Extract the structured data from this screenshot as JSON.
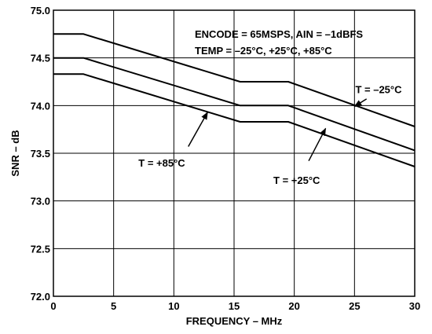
{
  "chart_data": {
    "type": "line",
    "title": "",
    "xlabel": "FREQUENCY – MHz",
    "ylabel": "SNR – dB",
    "xlim": [
      0,
      30
    ],
    "ylim": [
      72.0,
      75.0
    ],
    "x_ticks": [
      0,
      5,
      10,
      15,
      20,
      25,
      30
    ],
    "x_tick_labels": [
      "0",
      "5",
      "10",
      "15",
      "20",
      "25",
      "30"
    ],
    "y_ticks": [
      72.0,
      72.5,
      73.0,
      73.5,
      74.0,
      74.5,
      75.0
    ],
    "y_tick_labels": [
      "72.0",
      "72.5",
      "73.0",
      "73.5",
      "74.0",
      "74.5",
      "75.0"
    ],
    "grid": true,
    "legend": "none",
    "conditions": [
      "ENCODE = 65MSPS, AIN = –1dBFS",
      "TEMP = –25°C, +25°C, +85°C"
    ],
    "series": [
      {
        "name": "T = –25°C",
        "x": [
          0,
          2.5,
          15.5,
          19.5,
          30
        ],
        "y": [
          74.75,
          74.75,
          74.25,
          74.25,
          73.78
        ]
      },
      {
        "name": "T = +25°C",
        "x": [
          0,
          2.5,
          15.5,
          19.5,
          30
        ],
        "y": [
          74.5,
          74.5,
          74.0,
          74.0,
          73.53
        ]
      },
      {
        "name": "T = +85°C",
        "x": [
          0,
          2.5,
          15.5,
          19.5,
          30
        ],
        "y": [
          74.33,
          74.33,
          73.83,
          73.83,
          73.36
        ]
      }
    ],
    "annotations": [
      {
        "text": "T = –25°C",
        "series": 0,
        "label_at": [
          27.0,
          74.13
        ],
        "arrow_from": [
          26.0,
          74.07
        ],
        "arrow_to": [
          25.0,
          73.99
        ]
      },
      {
        "text": "T = +25°C",
        "series": 1,
        "label_at": [
          20.2,
          73.18
        ],
        "arrow_from": [
          21.2,
          73.42
        ],
        "arrow_to": [
          22.6,
          73.76
        ]
      },
      {
        "text": "T = +85°C",
        "series": 2,
        "label_at": [
          9.0,
          73.36
        ],
        "arrow_from": [
          11.2,
          73.57
        ],
        "arrow_to": [
          12.8,
          73.93
        ]
      }
    ]
  }
}
